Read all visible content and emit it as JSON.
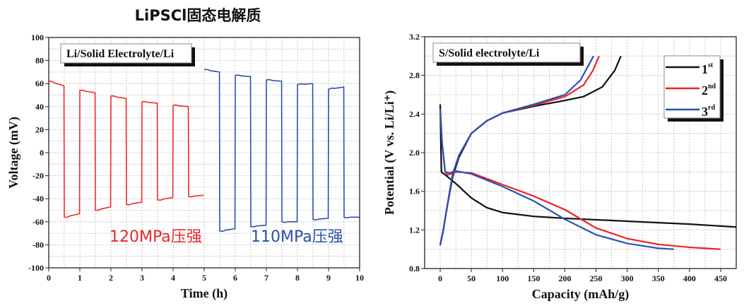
{
  "title": "LiPSCl固态电解质",
  "chart_data": [
    {
      "type": "line",
      "box_label": "Li/Solid Electrolyte/Li",
      "xlabel": "Time (h)",
      "ylabel": "Voltage (mV)",
      "xlim": [
        0,
        10
      ],
      "ylim": [
        -100,
        100
      ],
      "xticks": [
        0,
        1,
        2,
        3,
        4,
        5,
        6,
        7,
        8,
        9,
        10
      ],
      "yticks": [
        -100,
        -80,
        -60,
        -40,
        -20,
        0,
        20,
        40,
        60,
        80,
        100
      ],
      "grid": true,
      "annotations": [
        {
          "text": "120MPa压强",
          "color": "#e8262a"
        },
        {
          "text": "110MPa压强",
          "color": "#2a4fa8"
        }
      ],
      "series": [
        {
          "name": "120MPa",
          "color": "#ee2a2a",
          "segments_t_start_t_end_v_start_v_end": [
            [
              0,
              0.5,
              62,
              58
            ],
            [
              0.5,
              1,
              -56,
              -53
            ],
            [
              1,
              1.5,
              54,
              52
            ],
            [
              1.5,
              2,
              -50,
              -47
            ],
            [
              2,
              2.5,
              49,
              47
            ],
            [
              2.5,
              3,
              -45,
              -43
            ],
            [
              3,
              3.5,
              44,
              43
            ],
            [
              3.5,
              4,
              -41,
              -39
            ],
            [
              4,
              4.5,
              41,
              40
            ],
            [
              4.5,
              5,
              -38,
              -37
            ]
          ]
        },
        {
          "name": "110MPa",
          "color": "#2a4fb0",
          "segments_t_start_t_end_v_start_v_end": [
            [
              5,
              5.5,
              72,
              70
            ],
            [
              5.5,
              6,
              -68,
              -66
            ],
            [
              6,
              6.5,
              67,
              66
            ],
            [
              6.5,
              7,
              -64,
              -63
            ],
            [
              7,
              7.5,
              63,
              62
            ],
            [
              7.5,
              8,
              -60,
              -60
            ],
            [
              8,
              8.5,
              59,
              60
            ],
            [
              8.5,
              9,
              -58,
              -57
            ],
            [
              9,
              9.5,
              55,
              57
            ],
            [
              9.5,
              10,
              -56,
              -56
            ]
          ]
        }
      ]
    },
    {
      "type": "line",
      "box_label": "S/Solid electrolyte/Li",
      "xlabel": "Capacity (mAh/g)",
      "ylabel": "Potential (V vs. Li/Li⁺)",
      "xlim": [
        -25,
        475
      ],
      "ylim": [
        0.8,
        3.2
      ],
      "xticks": [
        0,
        50,
        100,
        150,
        200,
        250,
        300,
        350,
        400,
        450
      ],
      "yticks": [
        0.8,
        1.2,
        1.6,
        2.0,
        2.4,
        2.8,
        3.2
      ],
      "ytick_labels": [
        "0.8",
        "1.2",
        "1.6",
        "2.0",
        "2.4",
        "2.8",
        "3.2"
      ],
      "grid": true,
      "legend": "top-right",
      "series": [
        {
          "name": "1",
          "sup": "st",
          "color": "#111111",
          "charge": [
            [
              0,
              1.05
            ],
            [
              5,
              1.2
            ],
            [
              10,
              1.4
            ],
            [
              20,
              1.75
            ],
            [
              30,
              1.95
            ],
            [
              50,
              2.2
            ],
            [
              75,
              2.33
            ],
            [
              100,
              2.41
            ],
            [
              150,
              2.48
            ],
            [
              200,
              2.54
            ],
            [
              230,
              2.58
            ],
            [
              260,
              2.68
            ],
            [
              280,
              2.85
            ],
            [
              290,
              3.0
            ]
          ],
          "discharge": [
            [
              0,
              2.5
            ],
            [
              1,
              2.1
            ],
            [
              2,
              1.8
            ],
            [
              10,
              1.76
            ],
            [
              25,
              1.68
            ],
            [
              50,
              1.53
            ],
            [
              75,
              1.43
            ],
            [
              100,
              1.38
            ],
            [
              150,
              1.34
            ],
            [
              200,
              1.32
            ],
            [
              300,
              1.29
            ],
            [
              400,
              1.26
            ],
            [
              475,
              1.23
            ]
          ]
        },
        {
          "name": "2",
          "sup": "nd",
          "color": "#ee2222",
          "charge": [
            [
              0,
              1.05
            ],
            [
              5,
              1.2
            ],
            [
              10,
              1.4
            ],
            [
              20,
              1.78
            ],
            [
              30,
              1.97
            ],
            [
              50,
              2.2
            ],
            [
              75,
              2.33
            ],
            [
              100,
              2.41
            ],
            [
              150,
              2.49
            ],
            [
              200,
              2.58
            ],
            [
              230,
              2.7
            ],
            [
              245,
              2.85
            ],
            [
              255,
              3.0
            ]
          ],
          "discharge": [
            [
              0,
              2.45
            ],
            [
              3,
              2.1
            ],
            [
              8,
              1.8
            ],
            [
              12,
              1.77
            ],
            [
              25,
              1.8
            ],
            [
              50,
              1.79
            ],
            [
              100,
              1.67
            ],
            [
              150,
              1.55
            ],
            [
              200,
              1.41
            ],
            [
              250,
              1.22
            ],
            [
              300,
              1.11
            ],
            [
              350,
              1.05
            ],
            [
              400,
              1.02
            ],
            [
              450,
              1.0
            ]
          ]
        },
        {
          "name": "3",
          "sup": "rd",
          "color": "#2850b8",
          "charge": [
            [
              0,
              1.04
            ],
            [
              5,
              1.2
            ],
            [
              10,
              1.4
            ],
            [
              20,
              1.78
            ],
            [
              30,
              1.97
            ],
            [
              50,
              2.2
            ],
            [
              75,
              2.33
            ],
            [
              100,
              2.41
            ],
            [
              150,
              2.5
            ],
            [
              200,
              2.6
            ],
            [
              225,
              2.75
            ],
            [
              246,
              3.0
            ]
          ],
          "discharge": [
            [
              0,
              2.45
            ],
            [
              3,
              2.1
            ],
            [
              8,
              1.8
            ],
            [
              15,
              1.79
            ],
            [
              25,
              1.81
            ],
            [
              50,
              1.78
            ],
            [
              100,
              1.65
            ],
            [
              150,
              1.5
            ],
            [
              200,
              1.31
            ],
            [
              250,
              1.15
            ],
            [
              300,
              1.06
            ],
            [
              350,
              1.01
            ],
            [
              375,
              1.0
            ]
          ]
        }
      ]
    }
  ]
}
